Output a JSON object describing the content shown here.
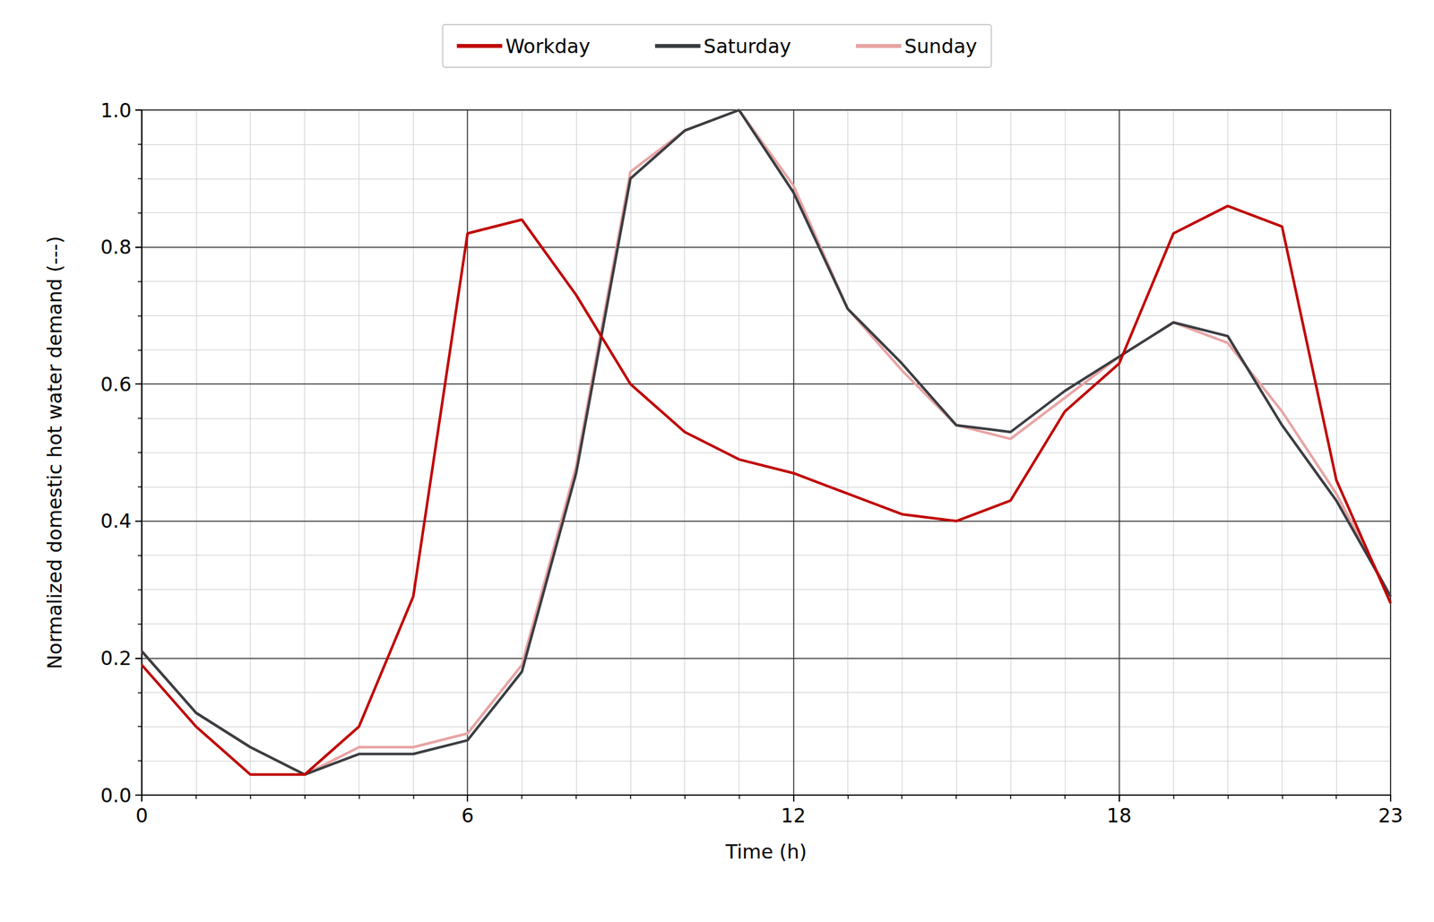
{
  "chart_data": {
    "type": "line",
    "x_label": "Time (h)",
    "y_label": "Normalized domestic hot water demand (---)",
    "x": [
      0,
      1,
      2,
      3,
      4,
      5,
      6,
      7,
      8,
      9,
      10,
      11,
      12,
      13,
      14,
      15,
      16,
      17,
      18,
      19,
      20,
      21,
      22,
      23
    ],
    "series": [
      {
        "name": "Workday",
        "color": "#c00000",
        "values": [
          0.19,
          0.1,
          0.03,
          0.03,
          0.1,
          0.29,
          0.82,
          0.84,
          0.73,
          0.6,
          0.53,
          0.49,
          0.47,
          0.44,
          0.41,
          0.4,
          0.43,
          0.56,
          0.63,
          0.82,
          0.86,
          0.83,
          0.46,
          0.28
        ]
      },
      {
        "name": "Saturday",
        "color": "#3a3d42",
        "values": [
          0.21,
          0.12,
          0.07,
          0.03,
          0.06,
          0.06,
          0.08,
          0.18,
          0.47,
          0.9,
          0.97,
          1.0,
          0.88,
          0.71,
          0.63,
          0.54,
          0.53,
          0.59,
          0.64,
          0.69,
          0.67,
          0.54,
          0.43,
          0.29
        ]
      },
      {
        "name": "Sunday",
        "color": "#e8a4a4",
        "values": [
          0.21,
          0.12,
          0.07,
          0.03,
          0.07,
          0.07,
          0.09,
          0.19,
          0.48,
          0.91,
          0.97,
          1.0,
          0.89,
          0.71,
          0.62,
          0.54,
          0.52,
          0.58,
          0.64,
          0.69,
          0.66,
          0.56,
          0.44,
          0.29
        ]
      }
    ],
    "xlim": [
      0,
      23
    ],
    "xticks": [
      0,
      6,
      12,
      18,
      23
    ],
    "ylim": [
      0,
      1
    ],
    "yticks": [
      {
        "value": 0,
        "label": "0.0"
      },
      0.2,
      0.4,
      0.6,
      0.8,
      {
        "value": 1,
        "label": "1.0"
      }
    ],
    "grid": true,
    "legend": "top"
  }
}
